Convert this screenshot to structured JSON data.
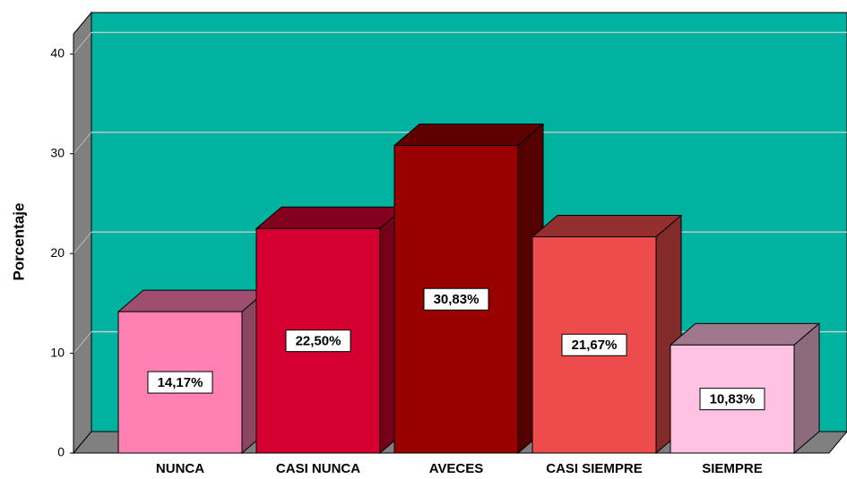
{
  "chart_data": {
    "type": "bar3d",
    "ylabel": "Porcentaje",
    "categories": [
      "NUNCA",
      "CASI NUNCA",
      "AVECES",
      "CASI SIEMPRE",
      "SIEMPRE"
    ],
    "values": [
      14.17,
      22.5,
      30.83,
      21.67,
      10.83
    ],
    "value_labels": [
      "14,17%",
      "22,50%",
      "30,83%",
      "21,67%",
      "10,83%"
    ],
    "colors": [
      "#ff80b3",
      "#d40030",
      "#990000",
      "#ee4c4c",
      "#ffc2e2"
    ],
    "background": "#00b2a0",
    "ylim": [
      0,
      42
    ],
    "yticks": [
      0,
      10,
      20,
      30,
      40
    ],
    "grid": true
  }
}
